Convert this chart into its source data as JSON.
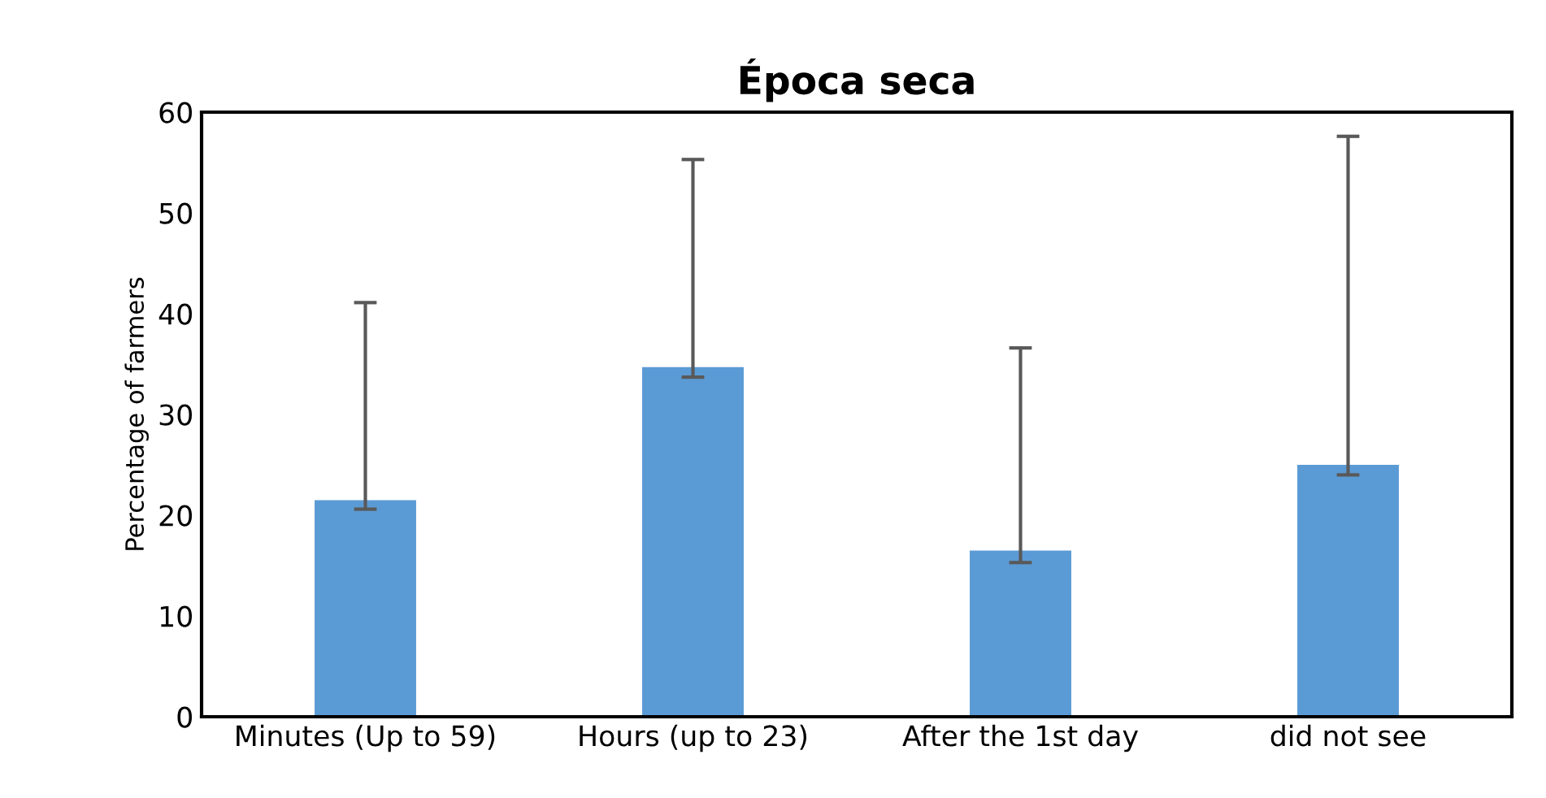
{
  "chart_data": {
    "type": "bar",
    "title": "Época seca",
    "ylabel": "Percentage of farmers",
    "categories": [
      "Minutes (Up to 59)",
      "Hours (up to 23)",
      "After the 1st day",
      "did not see"
    ],
    "values": [
      21.5,
      34.7,
      16.5,
      25.0
    ],
    "errors": [
      [
        20.6,
        41.1
      ],
      [
        33.7,
        55.3
      ],
      [
        15.3,
        36.6
      ],
      [
        24.0,
        57.6
      ]
    ],
    "color": "#5b9bd5",
    "ylim": [
      0,
      60
    ],
    "yticks": [
      0,
      10,
      20,
      30,
      40,
      50,
      60
    ],
    "grid": false
  }
}
